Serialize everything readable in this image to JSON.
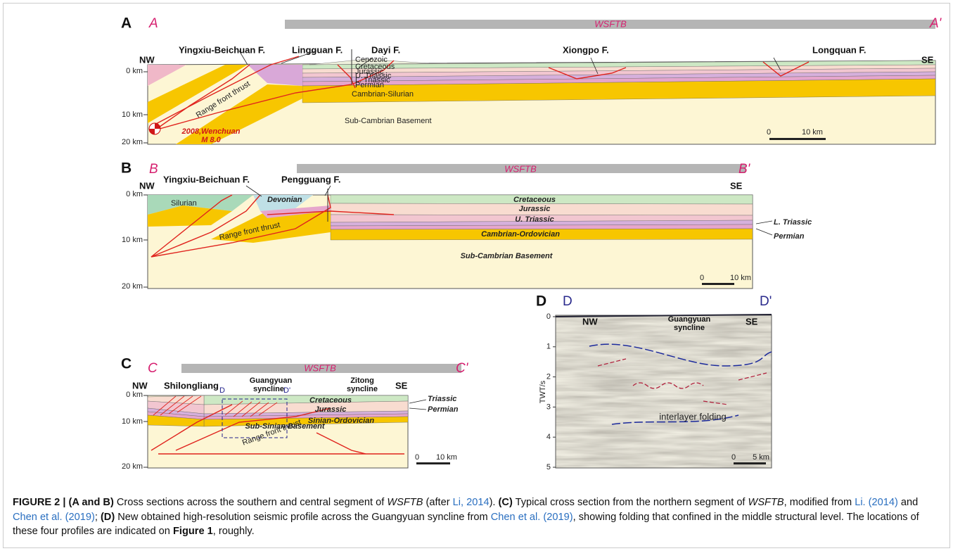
{
  "panel_a": {
    "letter": "A",
    "start": "A",
    "end": "A'",
    "belt": "WSFTB",
    "left": "NW",
    "right": "SE",
    "depths": [
      "0 km",
      "10 km",
      "20 km"
    ],
    "faults": [
      "Yingxiu-Beichuan F.",
      "Lingguan F.",
      "Dayi F.",
      "Xiongpo F.",
      "Longquan F."
    ],
    "units": [
      "Cenozoic",
      "Cretaceous",
      "Jurassic",
      "U. Triassic",
      "L. Triassic",
      "Permian",
      "Cambrian-Silurian",
      "Sub-Cambrian Basement"
    ],
    "thrust": "Range front thrust",
    "event": [
      "2008,Wenchuan",
      "M 8.0"
    ],
    "scale": [
      "0",
      "10 km"
    ]
  },
  "panel_b": {
    "letter": "B",
    "start": "B",
    "end": "B'",
    "belt": "WSFTB",
    "left": "NW",
    "right": "SE",
    "depths": [
      "0 km",
      "10 km",
      "20 km"
    ],
    "faults": [
      "Yingxiu-Beichuan F.",
      "Pengguang F."
    ],
    "units": [
      "Silurian",
      "Devonian",
      "Cretaceous",
      "Jurassic",
      "U. Triassic",
      "Cambrian-Ordovician",
      "Sub-Cambrian Basement"
    ],
    "side_units": [
      "L. Triassic",
      "Permian"
    ],
    "thrust": "Range front thrust",
    "scale": [
      "0",
      "10 km"
    ]
  },
  "panel_c": {
    "letter": "C",
    "start": "C",
    "end": "C'",
    "belt": "WSFTB",
    "left": "NW",
    "right": "SE",
    "depths": [
      "0 km",
      "10 km",
      "20 km"
    ],
    "places": {
      "shilongliang": "Shilongliang",
      "guangyuan": [
        "Guangyuan",
        "syncline"
      ],
      "zitong": [
        "Zitong",
        "syncline"
      ]
    },
    "window": [
      "D",
      "D'"
    ],
    "units": [
      "Cretaceous",
      "Jurassic",
      "Sinian-Ordovician",
      "Sub-Sinian Basement"
    ],
    "side_units": [
      "Triassic",
      "Permian"
    ],
    "thrust": "Range front thrust",
    "scale": [
      "0",
      "10 km"
    ]
  },
  "panel_d": {
    "letter": "D",
    "start": "D",
    "end": "D'",
    "axis_title": "TWT/s",
    "ticks": [
      0,
      1,
      2,
      3,
      4,
      5
    ],
    "left": "NW",
    "right": "SE",
    "syncline": [
      "Guangyuan",
      "syncline"
    ],
    "note": "interlayer folding",
    "scale": [
      "0",
      "5 km"
    ]
  },
  "caption": [
    "FIGURE 2 | (A and B)",
    " Cross sections across the southern and central segment of ",
    "WSFTB",
    " (after ",
    "Li, 2014",
    "). ",
    "(C)",
    " Typical cross section from the northern segment of ",
    "WSFTB",
    ", modified from ",
    "Li. (2014)",
    " and ",
    "Chen et al. (2019)",
    "; ",
    "(D)",
    " New obtained high-resolution seismic profile across the Guangyuan syncline from ",
    "Chen et al. (2019)",
    ", showing folding that confined in the middle structural level. The locations of these four profiles are indicated on ",
    "Figure 1",
    ", roughly."
  ]
}
